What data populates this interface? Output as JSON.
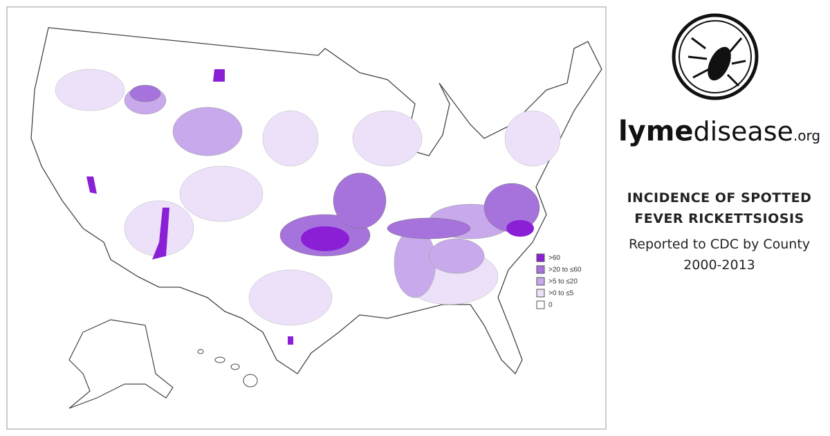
{
  "logo": {
    "name_bold": "lyme",
    "name": "disease",
    "suffix": ".org"
  },
  "title_lines": [
    "INCIDENCE OF SPOTTED",
    "FEVER RICKETTSIOSIS"
  ],
  "subtitle_lines": [
    "Reported to CDC by County",
    "2000-2013"
  ],
  "legend": [
    {
      "label": ">60",
      "color": "#8b1fd6"
    },
    {
      "label": ">20 to ≤60",
      "color": "#a673dc"
    },
    {
      "label": ">5 to ≤20",
      "color": "#c8aaec"
    },
    {
      "label": ">0 to ≤5",
      "color": "#ece1f8"
    },
    {
      "label": "0",
      "color": "#ffffff"
    }
  ]
}
